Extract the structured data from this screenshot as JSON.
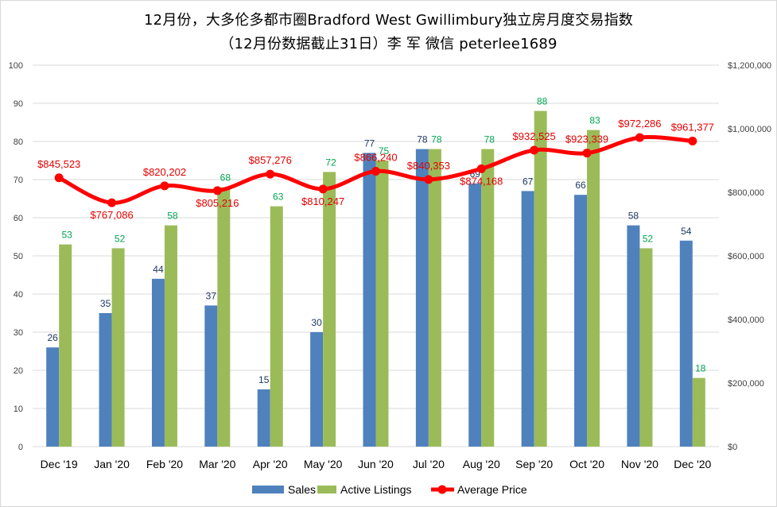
{
  "chart_data": {
    "type": "bar",
    "title": "12月份，大多伦多都市圈Bradford West Gwillimbury独立房月度交易指数",
    "subtitle": "（12月份数据截止31日）李 军  微信  peterlee1689",
    "categories": [
      "Dec '19",
      "Jan '20",
      "Feb '20",
      "Mar '20",
      "Apr '20",
      "May '20",
      "Jun '20",
      "Jul '20",
      "Aug '20",
      "Sep '20",
      "Oct '20",
      "Nov '20",
      "Dec '20"
    ],
    "series": [
      {
        "name": "Sales",
        "type": "bar",
        "axis": "left",
        "color": "#4f81bd",
        "values": [
          26,
          35,
          44,
          37,
          15,
          30,
          77,
          78,
          69,
          67,
          66,
          58,
          54
        ]
      },
      {
        "name": "Active Listings",
        "type": "bar",
        "axis": "left",
        "color": "#9bbb59",
        "values": [
          53,
          52,
          58,
          68,
          63,
          72,
          75,
          78,
          78,
          88,
          83,
          52,
          18
        ]
      },
      {
        "name": "Average Price",
        "type": "line",
        "axis": "right",
        "color": "#ff0000",
        "values": [
          845523,
          767086,
          820202,
          805216,
          857276,
          810247,
          866240,
          840353,
          874168,
          932525,
          923339,
          972286,
          961377
        ],
        "labels": [
          "$845,523",
          "$767,086",
          "$820,202",
          "$805,216",
          "$857,276",
          "$810,247",
          "$866,240",
          "$840,353",
          "$874,168",
          "$932,525",
          "$923,339",
          "$972,286",
          "$961,377"
        ]
      }
    ],
    "ylim": [
      0,
      100
    ],
    "y_ticks": [
      "0",
      "10",
      "20",
      "30",
      "40",
      "50",
      "60",
      "70",
      "80",
      "90",
      "100"
    ],
    "y2lim": [
      0,
      1200000
    ],
    "y2_ticks": [
      "$0",
      "$200,000",
      "$400,000",
      "$600,000",
      "$800,000",
      "$1,000,000",
      "$1,200,000"
    ],
    "grid": true,
    "legend_position": "bottom"
  }
}
